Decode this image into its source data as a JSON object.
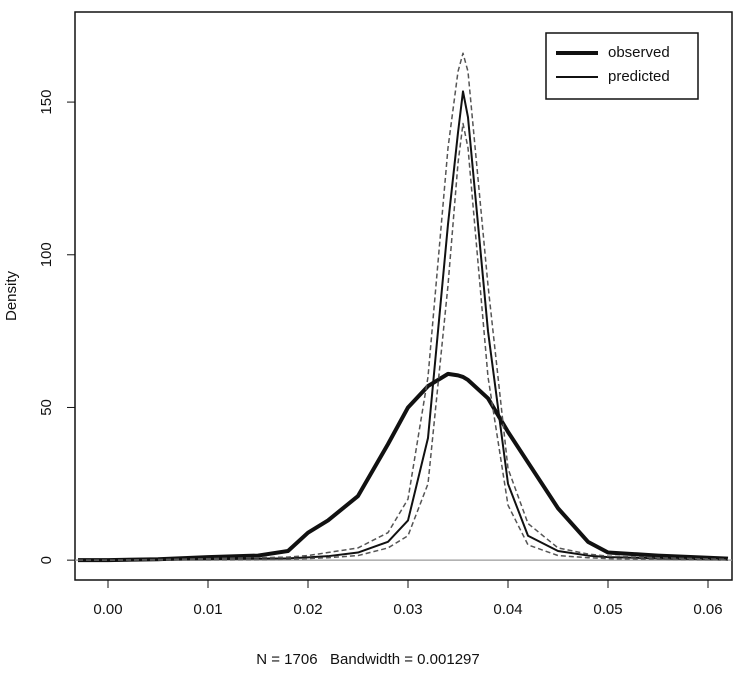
{
  "chart_data": {
    "type": "line",
    "x_label": "N = 1706   Bandwidth = 0.001297",
    "y_label": "Density",
    "x": [
      -0.003,
      0.0,
      0.005,
      0.01,
      0.015,
      0.018,
      0.02,
      0.022,
      0.025,
      0.028,
      0.03,
      0.032,
      0.034,
      0.035,
      0.0355,
      0.036,
      0.038,
      0.04,
      0.042,
      0.045,
      0.048,
      0.05,
      0.055,
      0.06,
      0.062
    ],
    "series": [
      {
        "name": "observed",
        "color": "#111111",
        "width": 4,
        "values": [
          0,
          0,
          0.3,
          1,
          1.5,
          3,
          9,
          13,
          21,
          38,
          50,
          57,
          61,
          60.5,
          60,
          59,
          53,
          42,
          32,
          17,
          6,
          2.5,
          1.5,
          0.8,
          0.5
        ]
      },
      {
        "name": "predicted",
        "color": "#111111",
        "width": 2,
        "values": [
          0,
          0,
          0.1,
          0.3,
          0.5,
          0.6,
          0.9,
          1.3,
          2.5,
          6,
          13,
          40,
          110,
          140,
          153.5,
          145,
          75,
          25,
          8,
          3,
          1.5,
          1,
          0.6,
          0.3,
          0.2
        ]
      },
      {
        "color": "#555555",
        "width": 1.5,
        "dashed": true,
        "values": [
          0,
          0,
          0.2,
          0.5,
          0.8,
          1,
          1.5,
          2.5,
          4,
          9,
          20,
          60,
          135,
          160,
          166,
          160,
          90,
          30,
          12,
          4,
          2,
          1.3,
          0.8,
          0.4,
          0.3
        ]
      },
      {
        "color": "#555555",
        "width": 1.5,
        "dashed": true,
        "values": [
          0,
          0,
          0.05,
          0.1,
          0.2,
          0.3,
          0.5,
          0.8,
          1.5,
          4,
          8,
          25,
          90,
          130,
          143,
          135,
          60,
          18,
          5,
          1.5,
          0.8,
          0.5,
          0.3,
          0.15,
          0.1
        ]
      }
    ],
    "xlim": [
      -0.0033,
      0.0624
    ],
    "ylim": [
      -6.5,
      179.5
    ],
    "xticks": [
      {
        "value": 0,
        "label": "0.00"
      },
      0.01,
      0.02,
      0.03,
      0.04,
      0.05,
      0.06
    ],
    "yticks": [
      0,
      50,
      100,
      150
    ],
    "zero_line_color": "#999999",
    "legend": "topright"
  }
}
